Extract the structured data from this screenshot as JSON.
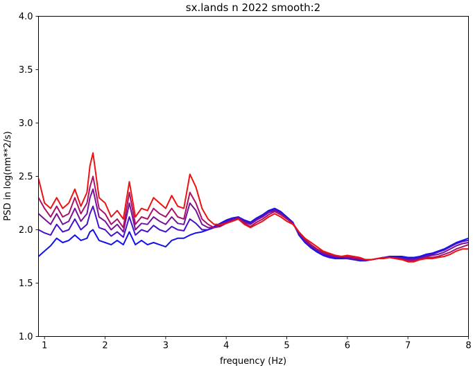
{
  "chart_data": {
    "type": "line",
    "title": "sx.lands n 2022 smooth:2",
    "xlabel": "frequency (Hz)",
    "ylabel": "PSD in log(nm**2/s)",
    "xlim": [
      0.9,
      8.0
    ],
    "ylim": [
      1.0,
      4.0
    ],
    "xticks": [
      1,
      2,
      3,
      4,
      5,
      6,
      7,
      8
    ],
    "xtick_labels": [
      "1",
      "2",
      "3",
      "4",
      "5",
      "6",
      "7",
      "8"
    ],
    "yticks": [
      1.0,
      1.5,
      2.0,
      2.5,
      3.0,
      3.5,
      4.0
    ],
    "ytick_labels": [
      "1.0",
      "1.5",
      "2.0",
      "2.5",
      "3.0",
      "3.5",
      "4.0"
    ],
    "grid": false,
    "legend": "none",
    "x": [
      0.9,
      1.0,
      1.1,
      1.2,
      1.3,
      1.4,
      1.5,
      1.6,
      1.7,
      1.75,
      1.8,
      1.9,
      2.0,
      2.1,
      2.2,
      2.3,
      2.4,
      2.5,
      2.6,
      2.7,
      2.8,
      2.9,
      3.0,
      3.1,
      3.2,
      3.3,
      3.4,
      3.5,
      3.6,
      3.7,
      3.8,
      3.9,
      4.0,
      4.1,
      4.2,
      4.3,
      4.4,
      4.5,
      4.6,
      4.7,
      4.8,
      4.9,
      5.0,
      5.1,
      5.2,
      5.3,
      5.4,
      5.5,
      5.6,
      5.7,
      5.8,
      5.9,
      6.0,
      6.1,
      6.2,
      6.3,
      6.4,
      6.5,
      6.6,
      6.7,
      6.8,
      6.9,
      7.0,
      7.1,
      7.2,
      7.3,
      7.4,
      7.5,
      7.6,
      7.7,
      7.8,
      7.9,
      8.0
    ],
    "series": [
      {
        "color": "#ee1111",
        "values": [
          2.48,
          2.25,
          2.2,
          2.3,
          2.2,
          2.25,
          2.38,
          2.22,
          2.35,
          2.6,
          2.72,
          2.3,
          2.25,
          2.12,
          2.18,
          2.1,
          2.45,
          2.12,
          2.2,
          2.18,
          2.3,
          2.25,
          2.2,
          2.32,
          2.22,
          2.2,
          2.52,
          2.4,
          2.2,
          2.1,
          2.05,
          2.05,
          2.06,
          2.08,
          2.1,
          2.05,
          2.02,
          2.05,
          2.08,
          2.12,
          2.15,
          2.12,
          2.08,
          2.05,
          1.98,
          1.92,
          1.88,
          1.84,
          1.8,
          1.78,
          1.76,
          1.75,
          1.76,
          1.75,
          1.74,
          1.72,
          1.72,
          1.73,
          1.73,
          1.74,
          1.73,
          1.72,
          1.7,
          1.7,
          1.72,
          1.73,
          1.73,
          1.74,
          1.75,
          1.77,
          1.8,
          1.82,
          1.82
        ]
      },
      {
        "color": "#aa1166",
        "values": [
          2.3,
          2.2,
          2.12,
          2.22,
          2.12,
          2.15,
          2.3,
          2.15,
          2.25,
          2.4,
          2.5,
          2.2,
          2.15,
          2.05,
          2.1,
          2.02,
          2.35,
          2.05,
          2.12,
          2.1,
          2.2,
          2.15,
          2.12,
          2.2,
          2.12,
          2.1,
          2.35,
          2.25,
          2.1,
          2.05,
          2.02,
          2.03,
          2.06,
          2.08,
          2.1,
          2.06,
          2.03,
          2.07,
          2.1,
          2.14,
          2.17,
          2.14,
          2.1,
          2.06,
          1.98,
          1.91,
          1.86,
          1.82,
          1.79,
          1.77,
          1.76,
          1.75,
          1.75,
          1.74,
          1.73,
          1.72,
          1.72,
          1.73,
          1.74,
          1.74,
          1.73,
          1.72,
          1.71,
          1.71,
          1.72,
          1.74,
          1.74,
          1.75,
          1.77,
          1.79,
          1.82,
          1.84,
          1.86
        ]
      },
      {
        "color": "#771199",
        "values": [
          2.15,
          2.1,
          2.05,
          2.15,
          2.05,
          2.08,
          2.2,
          2.08,
          2.15,
          2.3,
          2.38,
          2.12,
          2.08,
          2.0,
          2.05,
          1.98,
          2.25,
          2.0,
          2.06,
          2.05,
          2.12,
          2.08,
          2.05,
          2.12,
          2.06,
          2.05,
          2.25,
          2.18,
          2.05,
          2.02,
          2.02,
          2.04,
          2.07,
          2.09,
          2.11,
          2.07,
          2.05,
          2.09,
          2.12,
          2.16,
          2.18,
          2.15,
          2.1,
          2.06,
          1.97,
          1.9,
          1.85,
          1.81,
          1.78,
          1.76,
          1.75,
          1.75,
          1.74,
          1.73,
          1.72,
          1.72,
          1.72,
          1.73,
          1.74,
          1.74,
          1.74,
          1.73,
          1.72,
          1.72,
          1.73,
          1.75,
          1.76,
          1.77,
          1.79,
          1.82,
          1.85,
          1.87,
          1.88
        ]
      },
      {
        "color": "#4411cc",
        "values": [
          2.0,
          1.97,
          1.95,
          2.05,
          1.98,
          2.0,
          2.1,
          2.0,
          2.05,
          2.15,
          2.22,
          2.02,
          2.0,
          1.94,
          1.98,
          1.93,
          2.12,
          1.95,
          2.0,
          1.98,
          2.04,
          2.0,
          1.98,
          2.03,
          2.0,
          1.99,
          2.1,
          2.06,
          2.0,
          2.0,
          2.02,
          2.05,
          2.08,
          2.1,
          2.12,
          2.08,
          2.06,
          2.1,
          2.13,
          2.17,
          2.19,
          2.16,
          2.11,
          2.06,
          1.96,
          1.89,
          1.84,
          1.8,
          1.77,
          1.75,
          1.74,
          1.74,
          1.73,
          1.72,
          1.72,
          1.71,
          1.72,
          1.73,
          1.74,
          1.74,
          1.74,
          1.74,
          1.73,
          1.73,
          1.74,
          1.76,
          1.77,
          1.79,
          1.81,
          1.84,
          1.87,
          1.89,
          1.9
        ]
      },
      {
        "color": "#1111ee",
        "values": [
          1.75,
          1.8,
          1.85,
          1.92,
          1.88,
          1.9,
          1.95,
          1.9,
          1.92,
          1.98,
          2.0,
          1.9,
          1.88,
          1.86,
          1.9,
          1.86,
          1.98,
          1.86,
          1.9,
          1.86,
          1.88,
          1.86,
          1.84,
          1.9,
          1.92,
          1.92,
          1.95,
          1.97,
          1.98,
          2.0,
          2.03,
          2.06,
          2.09,
          2.11,
          2.12,
          2.09,
          2.07,
          2.11,
          2.14,
          2.18,
          2.2,
          2.17,
          2.12,
          2.07,
          1.95,
          1.88,
          1.83,
          1.79,
          1.76,
          1.74,
          1.73,
          1.73,
          1.73,
          1.72,
          1.71,
          1.71,
          1.72,
          1.73,
          1.74,
          1.75,
          1.75,
          1.75,
          1.74,
          1.74,
          1.75,
          1.77,
          1.78,
          1.8,
          1.82,
          1.85,
          1.88,
          1.9,
          1.92
        ]
      }
    ]
  }
}
